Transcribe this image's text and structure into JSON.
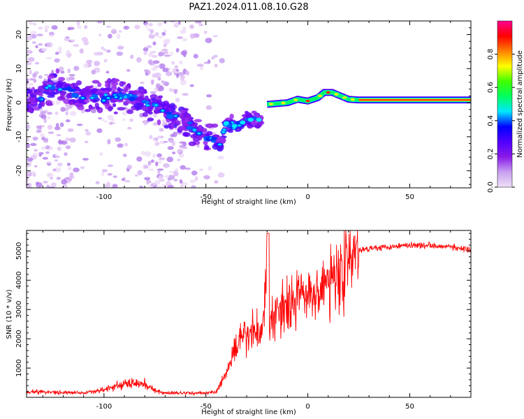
{
  "title": "PAZ1.2024.011.08.10.G28",
  "chart_data": [
    {
      "type": "heatmap",
      "xlabel": "Height of straight line (km)",
      "ylabel": "Frequency (Hz)",
      "xlim": [
        -138,
        80
      ],
      "ylim": [
        -25,
        24
      ],
      "xticks": [
        -100,
        -50,
        0,
        50
      ],
      "yticks": [
        -20,
        -10,
        0,
        10,
        20
      ],
      "colorbar": {
        "label": "Normalized spectral amplitude",
        "ticks": [
          0.0,
          0.2,
          0.4,
          0.6,
          0.8
        ],
        "range": [
          0,
          1
        ],
        "stops": [
          "#efe0f8",
          "#c8a0f0",
          "#8a1ae8",
          "#5000ff",
          "#0000ff",
          "#00e8ff",
          "#00ff60",
          "#40ff00",
          "#ffff00",
          "#ff8000",
          "#ff0000",
          "#ff0090"
        ]
      },
      "ridge": [
        {
          "x": -130,
          "y": 5.0
        },
        {
          "x": -120,
          "y": 4.0
        },
        {
          "x": -110,
          "y": 2.0
        },
        {
          "x": -100,
          "y": 1.5
        },
        {
          "x": -90,
          "y": 2.0
        },
        {
          "x": -80,
          "y": 0.5
        },
        {
          "x": -72,
          "y": -2.0
        },
        {
          "x": -60,
          "y": -6.0
        },
        {
          "x": -50,
          "y": -10.0
        },
        {
          "x": -43,
          "y": -12.5
        },
        {
          "x": -40,
          "y": -6.0
        },
        {
          "x": -35,
          "y": -7.0
        },
        {
          "x": -30,
          "y": -5.0
        },
        {
          "x": -23,
          "y": -5.0
        },
        {
          "x": -20,
          "y": -0.5
        },
        {
          "x": -10,
          "y": 0.0
        },
        {
          "x": -5,
          "y": 1.0
        },
        {
          "x": 0,
          "y": 0.5
        },
        {
          "x": 5,
          "y": 1.5
        },
        {
          "x": 8,
          "y": 3.0
        },
        {
          "x": 12,
          "y": 3.0
        },
        {
          "x": 20,
          "y": 1.0
        },
        {
          "x": 25,
          "y": 0.8
        },
        {
          "x": 80,
          "y": 0.8
        }
      ]
    },
    {
      "type": "line",
      "xlabel": "Height of straight line (km)",
      "ylabel": "SNR (10 * v/v)",
      "xlim": [
        -138,
        80
      ],
      "ylim": [
        0,
        5700
      ],
      "xticks": [
        -100,
        -50,
        0,
        50
      ],
      "yticks": [
        1000,
        2000,
        3000,
        4000,
        5000
      ],
      "color": "#ff0000",
      "series": [
        {
          "x": [
            -138,
            -120,
            -110,
            -100,
            -90,
            -80,
            -75,
            -70,
            -60,
            -50,
            -45,
            -40,
            -35,
            -30,
            -25,
            -22,
            -20,
            -19,
            -18,
            -15,
            -10,
            -5,
            0,
            5,
            10,
            15,
            20,
            25,
            30,
            40,
            50,
            60,
            70,
            80
          ],
          "y": [
            200,
            170,
            150,
            260,
            450,
            480,
            220,
            150,
            150,
            150,
            180,
            800,
            1800,
            2100,
            2300,
            2200,
            5000,
            2400,
            2600,
            3000,
            3200,
            3400,
            3500,
            3700,
            3900,
            4300,
            4600,
            5000,
            5100,
            5150,
            5200,
            5200,
            5150,
            5000
          ]
        }
      ]
    }
  ]
}
